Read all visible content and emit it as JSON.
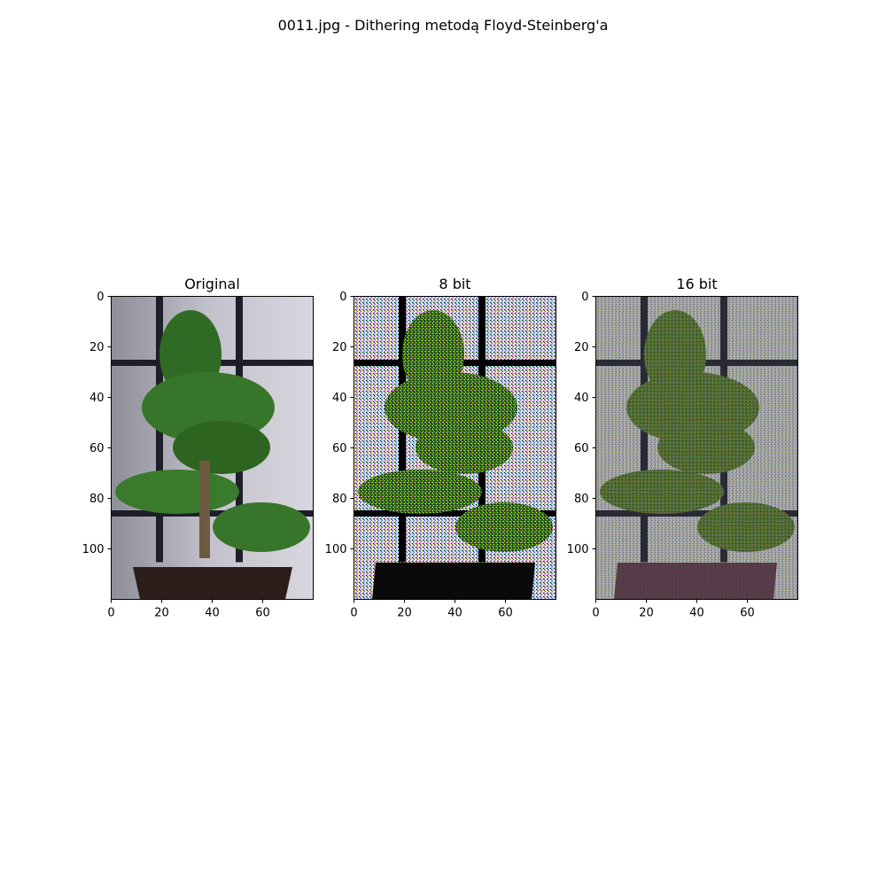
{
  "figure": {
    "title": "0011.jpg - Dithering metodą Floyd-Steinberg'a"
  },
  "chart_data": [
    {
      "type": "heatmap",
      "title": "Original",
      "xlabel": "",
      "ylabel": "",
      "xlim": [
        0,
        80
      ],
      "ylim": [
        120,
        0
      ],
      "xticks": [
        0,
        20,
        40,
        60
      ],
      "yticks": [
        0,
        20,
        40,
        60,
        80,
        100
      ],
      "grid": false,
      "image": "photograph of a bonsai tree in a dark pot in front of a grey wall with a dark window-frame lattice"
    },
    {
      "type": "heatmap",
      "title": "8 bit",
      "xlabel": "",
      "ylabel": "",
      "xlim": [
        0,
        80
      ],
      "ylim": [
        120,
        0
      ],
      "xticks": [
        0,
        20,
        40,
        60
      ],
      "yticks": [
        0,
        20,
        40,
        60,
        80,
        100
      ],
      "grid": false,
      "image": "Floyd-Steinberg dithered version of the photograph with a strongly reduced colour palette"
    },
    {
      "type": "heatmap",
      "title": "16 bit",
      "xlabel": "",
      "ylabel": "",
      "xlim": [
        0,
        80
      ],
      "ylim": [
        120,
        0
      ],
      "xticks": [
        0,
        20,
        40,
        60
      ],
      "yticks": [
        0,
        20,
        40,
        60,
        80,
        100
      ],
      "grid": false,
      "image": "Floyd-Steinberg dithered version of the photograph with a larger colour palette"
    }
  ]
}
